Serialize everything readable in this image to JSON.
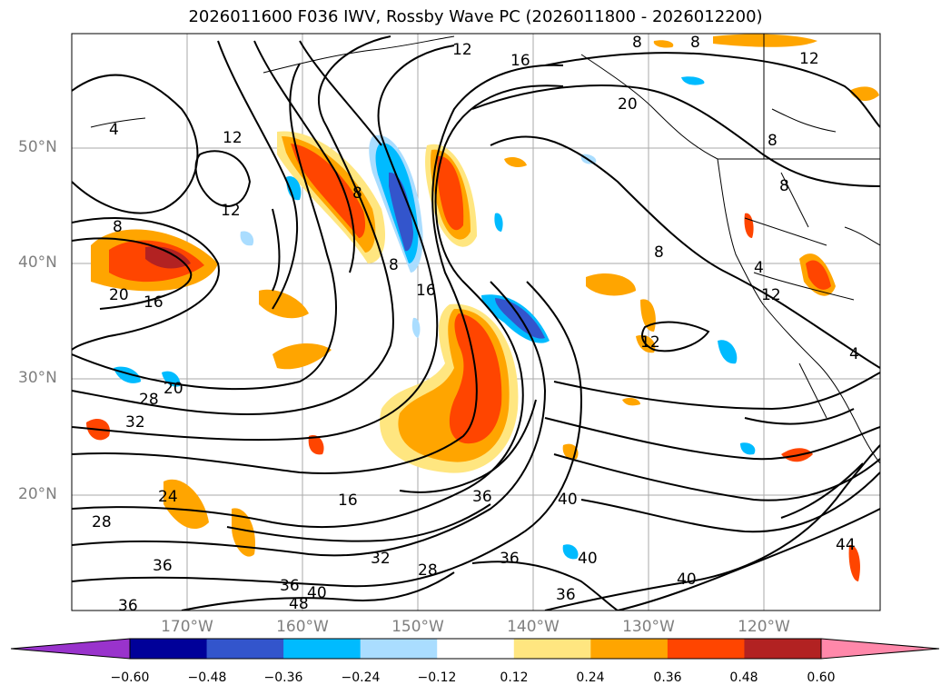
{
  "title": "2026011600 F036 IWV, Rossby Wave PC (2026011800 - 2026012200)",
  "lat_labels": [
    "50°N",
    "40°N",
    "30°N",
    "20°N"
  ],
  "lon_labels": [
    "170°W",
    "160°W",
    "150°W",
    "140°W",
    "130°W",
    "120°W"
  ],
  "colorbar": {
    "ticks": [
      "−0.60",
      "−0.48",
      "−0.36",
      "−0.24",
      "−0.12",
      "0.12",
      "0.24",
      "0.36",
      "0.48",
      "0.60"
    ],
    "colors": [
      "#9933cc",
      "#000099",
      "#3355cc",
      "#00bbff",
      "#aaddff",
      "#ffffff",
      "#ffe680",
      "#ffa500",
      "#ff4500",
      "#b22222",
      "#ff88aa"
    ]
  },
  "contour_labels": [
    "12",
    "16",
    "8",
    "8",
    "12",
    "4",
    "12",
    "12",
    "8",
    "16",
    "8",
    "8",
    "20",
    "16",
    "20",
    "28",
    "32",
    "24",
    "28",
    "36",
    "16",
    "36",
    "32",
    "28",
    "36",
    "40",
    "48",
    "40",
    "36",
    "40",
    "36",
    "40",
    "12",
    "8",
    "8",
    "8",
    "4",
    "4",
    "44",
    "20",
    "12",
    "36"
  ]
}
